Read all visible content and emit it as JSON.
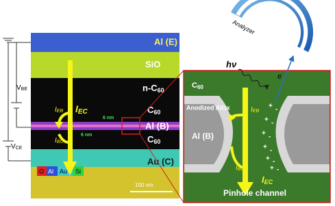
{
  "analyzer": "Analyzer",
  "circuit": {
    "vbe": {
      "text": "V",
      "sub": "BE"
    },
    "vce": {
      "text": "V",
      "sub": "CE"
    }
  },
  "left_panel": {
    "al_e": "Al (E)",
    "sio": "SiO",
    "n_c60": {
      "text": "n-C",
      "sub": "60"
    },
    "c60_top": {
      "text": "C",
      "sub": "60"
    },
    "al_b": "Al (B)",
    "c60_bottom": {
      "text": "C",
      "sub": "60"
    },
    "au_c": "Au (C)",
    "thickness_top": "6 nm",
    "thickness_bottom": "6 nm",
    "scale_bar": "100 nm",
    "legend": [
      "O",
      "Al",
      "Au",
      "Si"
    ],
    "i_ec": {
      "text": "I",
      "sub": "EC"
    },
    "i_eb": {
      "text": "I",
      "sub": "EB"
    },
    "i_bc": {
      "text": "I",
      "sub": "BC"
    }
  },
  "right_panel": {
    "photon": "hν",
    "electron": {
      "text": "e",
      "sup": "-"
    },
    "c60": {
      "text": "C",
      "sub": "60"
    },
    "alox": "Anodized AlOx",
    "al_b": "Al (B)",
    "i_eb": {
      "text": "I",
      "sub": "EB"
    },
    "i_bc": {
      "text": "I",
      "sub": "BC"
    },
    "i_ec": {
      "text": "I",
      "sub": "EC"
    },
    "plus": "+",
    "minus": "-",
    "caption": "Pinhole channel"
  }
}
